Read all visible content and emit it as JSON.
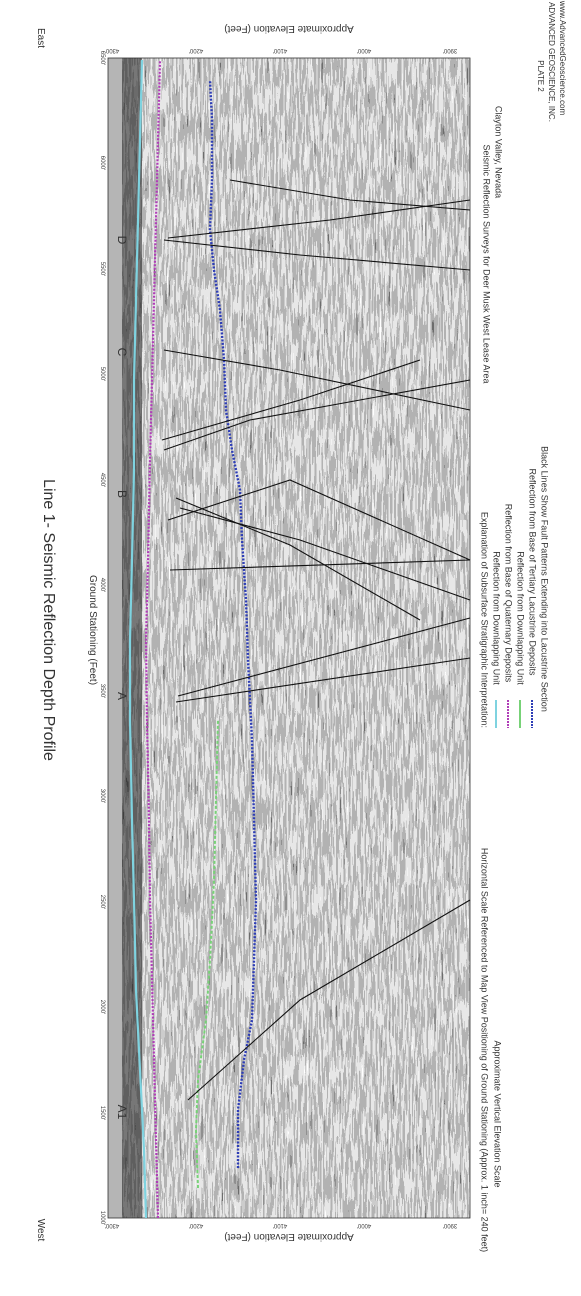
{
  "title": "Line 1- Seismic Reflection Depth Profile",
  "west_label": "West",
  "east_label": "East",
  "axis": {
    "x_label": "Ground Stationing (Feet)",
    "y_label_left": "Approximate Elevation (Feet)",
    "y_label_right": "Approximate Elevation (Feet)",
    "x_ticks": [
      "1000'",
      "1500'",
      "2000'",
      "2500'",
      "3000'",
      "3500'",
      "4000'",
      "4500'",
      "5000'",
      "5500'",
      "6000'",
      "6500'"
    ],
    "left_ticks": [
      "4300'",
      "4200'",
      "4100'",
      "4000'",
      "3900'"
    ],
    "right_ticks": [
      "4300'",
      "4200'",
      "4100'",
      "4000'",
      "3900'"
    ]
  },
  "stations": [
    "A1",
    "A",
    "B",
    "C",
    "D"
  ],
  "scale_note_1": "Horizontal Scale Referenced to Map View Positioning of Ground Stationing (Approx. 1 inch= 240 feet)",
  "scale_note_2": "Approximate Vertical Elevation Scale",
  "legend": {
    "heading": "Explanation of Subsurface Stratigraphic Interpretation:",
    "items": [
      {
        "label": "Reflection from Downlapping Unit",
        "color": "#7fd3e0",
        "style": "line"
      },
      {
        "label": "Reflection from Base of Quaternary Deposits",
        "color": "#b03db8",
        "style": "dotted"
      },
      {
        "label": "Reflection from Downlapping Unit",
        "color": "#77d277",
        "style": "line"
      },
      {
        "label": "Reflection from Base of Tertiary Lacustrine Deposits",
        "color": "#2d3db6",
        "style": "dotted"
      },
      {
        "label": "Black Lines Show Fault Patterns Extending into Lacustrine Section",
        "color": "#111111",
        "style": "none"
      }
    ]
  },
  "survey": {
    "line1": "Seismic Reflection Surveys for Deer Musk West Lease Area",
    "line2": "Clayton Valley, Nevada"
  },
  "plate": {
    "line1": "PLATE 2",
    "line2": "ADVANCED GEOSCIENCE, INC.",
    "line3": "www.AdvancedGeoscience.com"
  },
  "colors": {
    "cyan": "#7fd3e0",
    "magenta": "#b03db8",
    "green": "#77d277",
    "blue": "#2d3db6",
    "surface": "#b5b5b5"
  }
}
